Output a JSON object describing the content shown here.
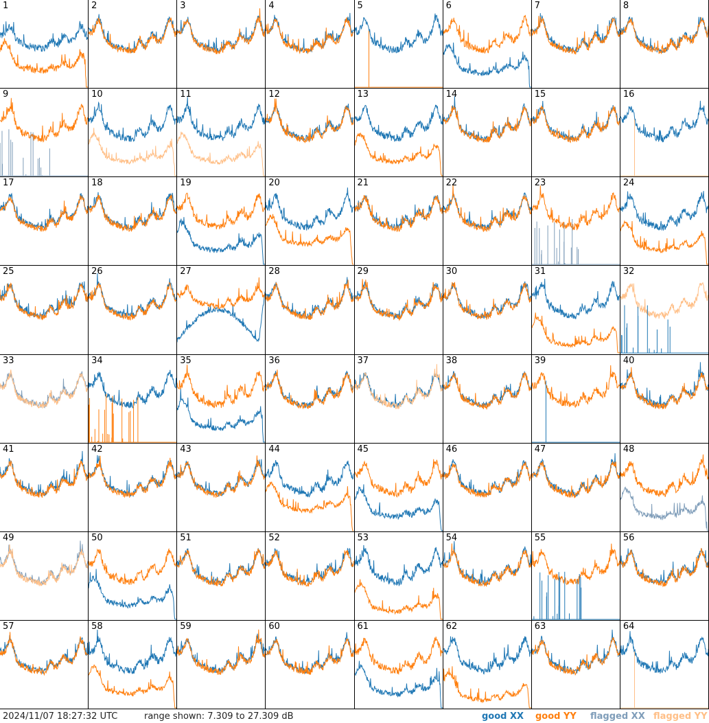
{
  "chart_data": {
    "type": "line",
    "layout": "8x8 grid of small multiples",
    "range_db": [
      7.309,
      27.309
    ],
    "series_keys": [
      "good XX",
      "good YY",
      "flagged XX",
      "flagged YY"
    ],
    "panels": [
      {
        "n": "1",
        "profile": "flaggedish",
        "xx": "good",
        "yy": "good",
        "yyLevel": 0.55,
        "xxLevel": 0.45
      },
      {
        "n": "2",
        "profile": "normal",
        "xx": "good",
        "yy": "good"
      },
      {
        "n": "3",
        "profile": "normal",
        "xx": "good",
        "yy": "good"
      },
      {
        "n": "4",
        "profile": "normal",
        "xx": "good",
        "yy": "good"
      },
      {
        "n": "5",
        "profile": "xxonly_yyflatbottom",
        "xx": "good",
        "yy": "good"
      },
      {
        "n": "6",
        "profile": "split_xxlow",
        "xx": "good",
        "yy": "good"
      },
      {
        "n": "7",
        "profile": "normal",
        "xx": "good",
        "yy": "good"
      },
      {
        "n": "8",
        "profile": "normal",
        "xx": "good",
        "yy": "good"
      },
      {
        "n": "9",
        "profile": "yyhigh_xxspikes",
        "xx": "flagged",
        "yy": "good"
      },
      {
        "n": "10",
        "profile": "split_yylow",
        "xx": "good",
        "yy": "flagged"
      },
      {
        "n": "11",
        "profile": "split_yylow",
        "xx": "good",
        "yy": "flagged"
      },
      {
        "n": "12",
        "profile": "normal",
        "xx": "good",
        "yy": "good"
      },
      {
        "n": "13",
        "profile": "split_yylow",
        "xx": "good",
        "yy": "good"
      },
      {
        "n": "14",
        "profile": "normal",
        "xx": "good",
        "yy": "good"
      },
      {
        "n": "15",
        "profile": "normal",
        "xx": "good",
        "yy": "good"
      },
      {
        "n": "16",
        "profile": "xxonly_yyflatbottom",
        "xx": "good",
        "yy": "flagged"
      },
      {
        "n": "17",
        "profile": "normal",
        "xx": "good",
        "yy": "good"
      },
      {
        "n": "18",
        "profile": "normal",
        "xx": "good",
        "yy": "good"
      },
      {
        "n": "19",
        "profile": "split_xxlow",
        "xx": "good",
        "yy": "good"
      },
      {
        "n": "20",
        "profile": "split_yylow_mild",
        "xx": "good",
        "yy": "good"
      },
      {
        "n": "21",
        "profile": "normal",
        "xx": "good",
        "yy": "good"
      },
      {
        "n": "22",
        "profile": "normal",
        "xx": "good",
        "yy": "good"
      },
      {
        "n": "23",
        "profile": "yyhigh_xxspikes",
        "xx": "flagged",
        "yy": "good"
      },
      {
        "n": "24",
        "profile": "split_yylow",
        "xx": "good",
        "yy": "good"
      },
      {
        "n": "25",
        "profile": "normal",
        "xx": "good",
        "yy": "good"
      },
      {
        "n": "26",
        "profile": "normal",
        "xx": "good",
        "yy": "good"
      },
      {
        "n": "27",
        "profile": "split_xxlow_deep",
        "xx": "good",
        "yy": "good"
      },
      {
        "n": "28",
        "profile": "normal",
        "xx": "good",
        "yy": "good"
      },
      {
        "n": "29",
        "profile": "normal",
        "xx": "good",
        "yy": "good"
      },
      {
        "n": "30",
        "profile": "normal",
        "xx": "good",
        "yy": "good"
      },
      {
        "n": "31",
        "profile": "split_yylow_deep",
        "xx": "good",
        "yy": "good"
      },
      {
        "n": "32",
        "profile": "yyhigh_xxspikes",
        "xx": "good",
        "yy": "flagged"
      },
      {
        "n": "33",
        "profile": "normal",
        "xx": "flagged",
        "yy": "flagged"
      },
      {
        "n": "34",
        "profile": "xxonly_yyspikes",
        "xx": "good",
        "yy": "good"
      },
      {
        "n": "35",
        "profile": "split_xxlow",
        "xx": "good",
        "yy": "good"
      },
      {
        "n": "36",
        "profile": "normal",
        "xx": "good",
        "yy": "good"
      },
      {
        "n": "37",
        "profile": "normal",
        "xx": "good",
        "yy": "flagged"
      },
      {
        "n": "38",
        "profile": "normal",
        "xx": "good",
        "yy": "good"
      },
      {
        "n": "39",
        "profile": "yyhigh_xxspike1",
        "xx": "good",
        "yy": "good"
      },
      {
        "n": "40",
        "profile": "normal",
        "xx": "good",
        "yy": "good"
      },
      {
        "n": "41",
        "profile": "normal",
        "xx": "good",
        "yy": "good"
      },
      {
        "n": "42",
        "profile": "normal",
        "xx": "good",
        "yy": "good"
      },
      {
        "n": "43",
        "profile": "normal",
        "xx": "good",
        "yy": "good"
      },
      {
        "n": "44",
        "profile": "split_yylow_mild",
        "xx": "good",
        "yy": "good"
      },
      {
        "n": "45",
        "profile": "split_xxlow",
        "xx": "good",
        "yy": "good"
      },
      {
        "n": "46",
        "profile": "normal",
        "xx": "good",
        "yy": "good"
      },
      {
        "n": "47",
        "profile": "normal",
        "xx": "good",
        "yy": "good"
      },
      {
        "n": "48",
        "profile": "split_xxlow",
        "xx": "flagged",
        "yy": "good"
      },
      {
        "n": "49",
        "profile": "normal",
        "xx": "flagged",
        "yy": "flagged"
      },
      {
        "n": "50",
        "profile": "split_xxlow",
        "xx": "good",
        "yy": "good"
      },
      {
        "n": "51",
        "profile": "normal",
        "xx": "good",
        "yy": "good"
      },
      {
        "n": "52",
        "profile": "normal",
        "xx": "good",
        "yy": "good"
      },
      {
        "n": "53",
        "profile": "split_yylow_deep",
        "xx": "good",
        "yy": "good"
      },
      {
        "n": "54",
        "profile": "normal",
        "xx": "good",
        "yy": "good"
      },
      {
        "n": "55",
        "profile": "yyhigh_xxspikes",
        "xx": "good",
        "yy": "good"
      },
      {
        "n": "56",
        "profile": "normal",
        "xx": "good",
        "yy": "good"
      },
      {
        "n": "57",
        "profile": "normal",
        "xx": "good",
        "yy": "good"
      },
      {
        "n": "58",
        "profile": "split_yylow",
        "xx": "good",
        "yy": "good"
      },
      {
        "n": "59",
        "profile": "normal",
        "xx": "good",
        "yy": "good"
      },
      {
        "n": "60",
        "profile": "normal",
        "xx": "good",
        "yy": "good"
      },
      {
        "n": "61",
        "profile": "split_xxlow",
        "xx": "good",
        "yy": "good"
      },
      {
        "n": "62",
        "profile": "split_yylow_deep",
        "xx": "good",
        "yy": "good"
      },
      {
        "n": "63",
        "profile": "normal",
        "xx": "good",
        "yy": "good"
      },
      {
        "n": "64",
        "profile": "xxonly_yyflatbottom",
        "xx": "good",
        "yy": "flagged"
      }
    ]
  },
  "footer": {
    "timestamp": "2024/11/07 18:27:32 UTC",
    "range_text": "range shown: 7.309 to 27.309 dB",
    "legend": [
      {
        "key": "good_xx",
        "label": "good XX",
        "color": "#1f77b4"
      },
      {
        "key": "good_yy",
        "label": "good YY",
        "color": "#ff7f0e"
      },
      {
        "key": "flagged_xx",
        "label": "flagged XX",
        "color": "#7f9db9"
      },
      {
        "key": "flagged_yy",
        "label": "flagged YY",
        "color": "#ffbf87"
      }
    ]
  }
}
